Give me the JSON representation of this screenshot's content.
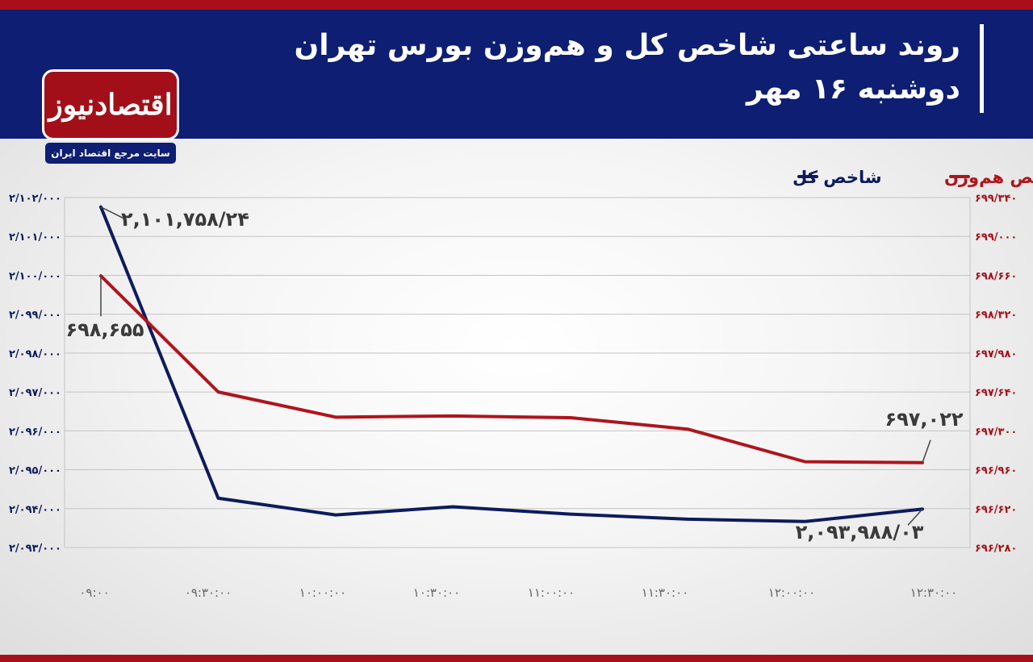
{
  "header": {
    "title_line1": "روند ساعتی شاخص کل و هم‌وزن بورس تهران",
    "title_line2": "دوشنبه ۱۶ مهر"
  },
  "logo": {
    "name": "اقتصادنیوز",
    "tagline": "سایت مرجع اقتصاد ایران"
  },
  "colors": {
    "header_bg": "#0d1e73",
    "accent_red": "#a80f18",
    "total_index": "#0d1b5e",
    "equal_weight_index": "#b0141c"
  },
  "chart_data": {
    "type": "line",
    "x": [
      "۰۹:۰۰",
      "۰۹:۳۰:۰۰",
      "۱۰:۰۰:۰۰",
      "۱۰:۳۰:۰۰",
      "۱۱:۰۰:۰۰",
      "۱۱:۳۰:۰۰",
      "۱۲:۰۰:۰۰",
      "۱۲:۳۰:۰۰"
    ],
    "x_values": [
      0,
      1,
      2,
      3,
      4,
      5,
      6,
      7
    ],
    "legend_position": "top-right",
    "grid": true,
    "series": [
      {
        "name": "شاخص کل",
        "axis": "left",
        "values": [
          2101758.24,
          2094268,
          2093838,
          2094048,
          2093858,
          2093728,
          2093668,
          2093988.03
        ]
      },
      {
        "name": "شاخص هم‌وزن",
        "axis": "right",
        "values": [
          698655,
          697640,
          697420,
          697430,
          697415,
          697315,
          697030,
          697022
        ]
      }
    ],
    "left_axis": {
      "ylim": [
        2093000,
        2102000
      ],
      "ticks": [
        2102000,
        2101000,
        2100000,
        2099000,
        2098000,
        2097000,
        2096000,
        2095000,
        2094000,
        2093000
      ],
      "tick_labels": [
        "۲/۱۰۲/۰۰۰",
        "۲/۱۰۱/۰۰۰",
        "۲/۱۰۰/۰۰۰",
        "۲/۰۹۹/۰۰۰",
        "۲/۰۹۸/۰۰۰",
        "۲/۰۹۷/۰۰۰",
        "۲/۰۹۶/۰۰۰",
        "۲/۰۹۵/۰۰۰",
        "۲/۰۹۴/۰۰۰",
        "۲/۰۹۳/۰۰۰"
      ]
    },
    "right_axis": {
      "ylim": [
        696280,
        699340
      ],
      "ticks": [
        699340,
        699000,
        698660,
        698320,
        697980,
        697640,
        697300,
        696960,
        696620,
        696280
      ],
      "tick_labels": [
        "۶۹۹/۳۴۰",
        "۶۹۹/۰۰۰",
        "۶۹۸/۶۶۰",
        "۶۹۸/۳۲۰",
        "۶۹۷/۹۸۰",
        "۶۹۷/۶۴۰",
        "۶۹۷/۳۰۰",
        "۶۹۶/۹۶۰",
        "۶۹۶/۶۲۰",
        "۶۹۶/۲۸۰"
      ]
    },
    "annotations": [
      {
        "series": 0,
        "point": 0,
        "text": "۲,۱۰۱,۷۵۸/۲۴"
      },
      {
        "series": 1,
        "point": 0,
        "text": "۶۹۸,۶۵۵"
      },
      {
        "series": 1,
        "point": 7,
        "text": "۶۹۷,۰۲۲"
      },
      {
        "series": 0,
        "point": 7,
        "text": "۲,۰۹۳,۹۸۸/۰۳"
      }
    ]
  }
}
